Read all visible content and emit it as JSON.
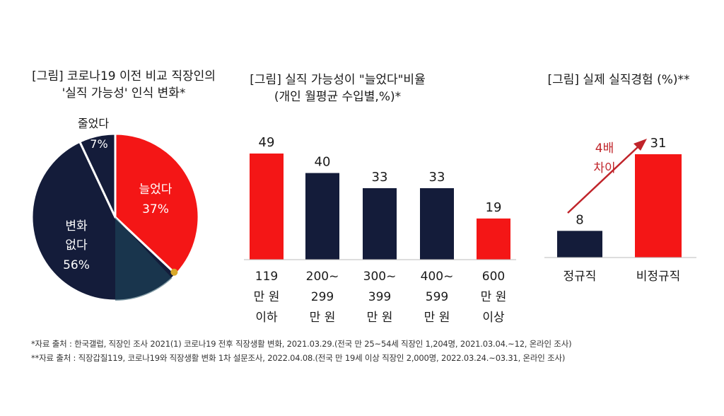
{
  "titles": {
    "pie": [
      "[그림] 코로나19 이전 비교 직장인의",
      "'실직 가능성' 인식 변화*"
    ],
    "bar_income": [
      "[그림] 실직 가능성이 \"늘었다\"비율",
      "(개인 월평균 수입별,%)*"
    ],
    "bar_job": [
      "[그림] 실제 실직경험 (%)**"
    ]
  },
  "annotation": {
    "text": [
      "4배",
      "차이"
    ],
    "color": "#c0242a"
  },
  "footnotes": [
    "*자료 출처 : 한국갤럽, 직장인 조사 2021(1) 코로나19 전후 직장생활 변화, 2021.03.29.(전국 만 25~54세 직장인 1,204명, 2021.03.04.~12, 온라인 조사)",
    "**자료 출처 : 직장갑질119, 코로나19와 직장생활 변화 1차 설문조사, 2022.04.08.(전국 만 19세 이상 직장인 2,000명, 2022.03.24.~03.31, 온라인 조사)"
  ],
  "colors": {
    "red": "#f41616",
    "navy": "#141c3a",
    "teal": "#1d4a5c",
    "gold": "#d8a82a"
  },
  "chart_data": [
    {
      "type": "pie",
      "slices": [
        {
          "label": "늘었다",
          "value": 37,
          "display": "37%"
        },
        {
          "label": "변화 없다",
          "value": 56,
          "display": "56%"
        },
        {
          "label": "줄었다",
          "value": 7,
          "display": "7%"
        }
      ]
    },
    {
      "type": "bar",
      "categories": [
        [
          "119",
          "만 원",
          "이하"
        ],
        [
          "200~",
          "299",
          "만 원"
        ],
        [
          "300~",
          "399",
          "만 원"
        ],
        [
          "400~",
          "599",
          "만 원"
        ],
        [
          "600",
          "만 원",
          "이상"
        ]
      ],
      "values": [
        49,
        40,
        33,
        33,
        19
      ],
      "ylim": [
        0,
        55
      ]
    },
    {
      "type": "bar",
      "categories": [
        "정규직",
        "비정규직"
      ],
      "values": [
        8,
        31
      ],
      "ylim": [
        0,
        35
      ]
    }
  ]
}
